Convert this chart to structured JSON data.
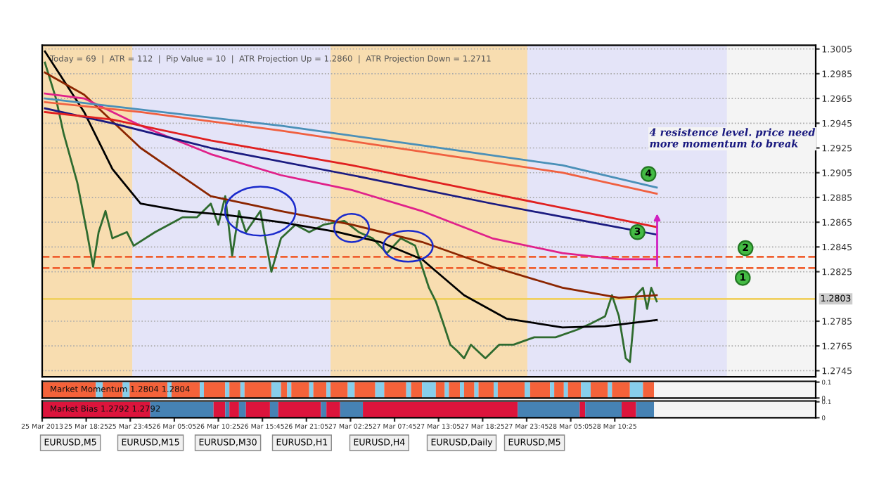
{
  "chart_data": [
    {
      "type": "line",
      "tick_labels": "y",
      "grid": "y",
      "xlim": [
        "2013-03-25T13:05",
        "2013-03-29T10:45"
      ],
      "ylim": [
        1.274,
        1.3008
      ],
      "yticks": [
        1.3005,
        1.2985,
        1.2965,
        1.2945,
        1.2925,
        1.2905,
        1.2885,
        1.2865,
        1.2845,
        1.2825,
        1.2785,
        1.2765,
        1.2745
      ],
      "series": [
        {
          "color": "#2f6b2f",
          "x": [
            "2013-03-25T13:25",
            "2013-03-25T14:45",
            "2013-03-25T15:40",
            "2013-03-25T17:20",
            "2013-03-25T18:30",
            "2013-03-25T19:15",
            "2013-03-25T19:55",
            "2013-03-25T20:45",
            "2013-03-25T21:35",
            "2013-03-25T23:20",
            "2013-03-26T00:10",
            "2013-03-26T02:45",
            "2013-03-26T04:25",
            "2013-03-26T06:05",
            "2013-03-26T07:50",
            "2013-03-26T09:30",
            "2013-03-26T10:25",
            "2013-03-26T11:15",
            "2013-03-26T12:05",
            "2013-03-26T12:55",
            "2013-03-26T13:45",
            "2013-03-26T15:30",
            "2013-03-26T16:50",
            "2013-03-26T18:00",
            "2013-03-26T19:45",
            "2013-03-26T21:25",
            "2013-03-26T23:10",
            "2013-03-27T01:40",
            "2013-03-27T03:25",
            "2013-03-27T05:05",
            "2013-03-27T06:50",
            "2013-03-27T08:30",
            "2013-03-27T10:15",
            "2013-03-27T11:05",
            "2013-03-27T11:55",
            "2013-03-27T12:45",
            "2013-03-27T13:40",
            "2013-03-27T14:30",
            "2013-03-27T15:20",
            "2013-03-27T16:10",
            "2013-03-27T17:00",
            "2013-03-27T18:45",
            "2013-03-27T20:25",
            "2013-03-27T22:10",
            "2013-03-28T00:40",
            "2013-03-28T03:15",
            "2013-03-28T05:50",
            "2013-03-28T07:30",
            "2013-03-28T09:15",
            "2013-03-28T10:05",
            "2013-03-28T10:55",
            "2013-03-28T11:45",
            "2013-03-28T12:15",
            "2013-03-28T13:00",
            "2013-03-28T13:50",
            "2013-03-28T14:20",
            "2013-03-28T14:50",
            "2013-03-28T15:30"
          ],
          "values": [
            1.2994,
            1.2965,
            1.2937,
            1.2897,
            1.2857,
            1.2829,
            1.2857,
            1.2874,
            1.2852,
            1.2857,
            1.2846,
            1.2857,
            1.2863,
            1.2869,
            1.2869,
            1.288,
            1.2863,
            1.2886,
            1.2838,
            1.2874,
            1.2857,
            1.2874,
            1.2825,
            1.2852,
            1.2863,
            1.2857,
            1.2863,
            1.2866,
            1.2857,
            1.2852,
            1.284,
            1.2852,
            1.2846,
            1.2829,
            1.2812,
            1.2801,
            1.2783,
            1.2766,
            1.2761,
            1.2755,
            1.2766,
            1.2755,
            1.2766,
            1.2766,
            1.2772,
            1.2772,
            1.2778,
            1.2783,
            1.2789,
            1.2806,
            1.2789,
            1.2755,
            1.2752,
            1.2806,
            1.2812,
            1.2795,
            1.2812,
            1.2801
          ]
        },
        {
          "color": "#000000",
          "x": [
            "2013-03-25T13:25",
            "2013-03-25T18:10",
            "2013-03-25T21:35",
            "2013-03-26T01:00",
            "2013-03-26T06:05",
            "2013-03-26T11:15",
            "2013-03-26T18:00",
            "2013-03-27T00:50",
            "2013-03-27T06:00",
            "2013-03-27T11:05",
            "2013-03-27T16:10",
            "2013-03-27T21:20",
            "2013-03-28T04:05",
            "2013-03-28T09:15",
            "2013-03-28T15:30"
          ],
          "values": [
            1.3003,
            1.2954,
            1.2908,
            1.288,
            1.2874,
            1.2871,
            1.2865,
            1.2857,
            1.2849,
            1.2835,
            1.2806,
            1.2787,
            1.278,
            1.2781,
            1.2786
          ]
        },
        {
          "color": "#8b2500",
          "x": [
            "2013-03-25T13:25",
            "2013-03-25T18:10",
            "2013-03-26T01:00",
            "2013-03-26T09:30",
            "2013-03-26T18:00",
            "2013-03-27T02:35",
            "2013-03-27T11:05",
            "2013-03-27T19:35",
            "2013-03-28T04:05",
            "2013-03-28T10:55",
            "2013-03-28T15:30"
          ],
          "values": [
            1.2986,
            1.2968,
            1.2925,
            1.2886,
            1.2874,
            1.2863,
            1.2849,
            1.2829,
            1.2812,
            1.2804,
            1.2806
          ]
        },
        {
          "color": "#e0218a",
          "x": [
            "2013-03-25T13:25",
            "2013-03-25T18:10",
            "2013-03-26T01:00",
            "2013-03-26T09:30",
            "2013-03-26T18:00",
            "2013-03-27T02:35",
            "2013-03-27T11:05",
            "2013-03-27T19:35",
            "2013-03-28T04:05",
            "2013-03-28T10:55",
            "2013-03-28T15:30"
          ],
          "values": [
            1.2969,
            1.2965,
            1.2943,
            1.292,
            1.2903,
            1.2891,
            1.2874,
            1.2852,
            1.284,
            1.2835,
            1.2835
          ]
        },
        {
          "color": "#1a1a80",
          "x": [
            "2013-03-25T13:25",
            "2013-03-25T21:35",
            "2013-03-26T09:30",
            "2013-03-27T02:35",
            "2013-03-27T19:35",
            "2013-03-28T07:30",
            "2013-03-28T15:30"
          ],
          "values": [
            1.2957,
            1.2945,
            1.2925,
            1.2903,
            1.288,
            1.2865,
            1.2855
          ]
        },
        {
          "color": "#e02020",
          "x": [
            "2013-03-25T13:25",
            "2013-03-25T21:35",
            "2013-03-26T09:30",
            "2013-03-27T02:35",
            "2013-03-27T19:35",
            "2013-03-28T07:30",
            "2013-03-28T15:30"
          ],
          "values": [
            1.2954,
            1.2948,
            1.2931,
            1.2911,
            1.2888,
            1.2872,
            1.2861
          ]
        },
        {
          "color": "#4a90b8",
          "x": [
            "2013-03-25T13:25",
            "2013-03-26T01:00",
            "2013-03-26T18:00",
            "2013-03-27T11:05",
            "2013-03-28T04:05",
            "2013-03-28T15:30"
          ],
          "values": [
            1.2965,
            1.2956,
            1.2943,
            1.2927,
            1.2911,
            1.2893
          ]
        },
        {
          "color": "#f06040",
          "x": [
            "2013-03-25T13:25",
            "2013-03-26T01:00",
            "2013-03-26T18:00",
            "2013-03-27T11:05",
            "2013-03-28T04:05",
            "2013-03-28T15:30"
          ],
          "values": [
            1.2962,
            1.2954,
            1.2939,
            1.2922,
            1.2905,
            1.2888
          ]
        }
      ],
      "ref_lines": [
        {
          "axis": "y",
          "value": 1.2837,
          "color": "#f06030",
          "line_style": "dashed"
        },
        {
          "axis": "y",
          "value": 1.2828,
          "color": "#f06030",
          "line_style": "dashed"
        },
        {
          "axis": "y",
          "value": 1.2803,
          "label": "1.2803",
          "color": "#f0d060",
          "line_style": "solid"
        }
      ],
      "bands": [
        {
          "axis": "x",
          "from": "2013-03-25T13:05",
          "to": "2013-03-26T00:00",
          "color": "#f8ddb0"
        },
        {
          "axis": "x",
          "from": "2013-03-26T00:00",
          "to": "2013-03-27T00:00",
          "color": "#e4e4f8"
        },
        {
          "axis": "x",
          "from": "2013-03-27T00:00",
          "to": "2013-03-27T23:50",
          "color": "#f8ddb0"
        },
        {
          "axis": "x",
          "from": "2013-03-27T23:50",
          "to": "2013-03-29T00:00",
          "color": "#e4e4f8"
        }
      ],
      "annotations": [
        "Today = 69  |  ATR = 112  |  Pip Value = 10  |  ATR Projection Up = 1.2860  |  ATR Projection Down = 1.2711",
        "4 resistence level. price need more momentum to break",
        {
          "text": "4",
          "x": "2013-03-28T14:30",
          "y": 1.2904
        },
        {
          "text": "3",
          "x": "2013-03-28T13:10",
          "y": 1.2857
        },
        {
          "text": "2",
          "x": "2013-03-29T02:15",
          "y": 1.2844
        },
        {
          "text": "1",
          "x": "2013-03-29T01:55",
          "y": 1.282
        }
      ]
    },
    {
      "type": "histogram",
      "tick_labels": "y",
      "xlim": [
        "2013-03-25T13:05",
        "2013-03-29T10:45"
      ],
      "ylim": [
        0,
        0.105
      ],
      "yticks": [
        0,
        0.1
      ],
      "bins": [
        "2013-03-25T13:05",
        "2013-03-25T19:35",
        "2013-03-25T20:25",
        "2013-03-25T22:50",
        "2013-03-25T23:40",
        "2013-03-26T04:15",
        "2013-03-26T04:45",
        "2013-03-26T08:10",
        "2013-03-26T08:40",
        "2013-03-26T11:15",
        "2013-03-26T11:45",
        "2013-03-26T13:05",
        "2013-03-26T13:35",
        "2013-03-26T16:50",
        "2013-03-26T18:00",
        "2013-03-26T18:45",
        "2013-03-26T19:15",
        "2013-03-26T21:25",
        "2013-03-26T21:55",
        "2013-03-26T23:30",
        "2013-03-27T00:00",
        "2013-03-27T02:05",
        "2013-03-27T02:55",
        "2013-03-27T05:25",
        "2013-03-27T06:30",
        "2013-03-27T09:10",
        "2013-03-27T09:45",
        "2013-03-27T11:05",
        "2013-03-27T12:45",
        "2013-03-27T13:50",
        "2013-03-27T14:20",
        "2013-03-27T15:40",
        "2013-03-27T16:10",
        "2013-03-27T17:25",
        "2013-03-27T17:55",
        "2013-03-27T19:45",
        "2013-03-27T20:15",
        "2013-03-27T23:30",
        "2013-03-28T00:10",
        "2013-03-28T02:35",
        "2013-03-28T03:05",
        "2013-03-28T04:15",
        "2013-03-28T04:45",
        "2013-03-28T06:20",
        "2013-03-28T07:30",
        "2013-03-28T09:35",
        "2013-03-28T10:05",
        "2013-03-28T12:15",
        "2013-03-28T13:50",
        "2013-03-28T15:10"
      ],
      "values": [
        0.1,
        0.1,
        0.1,
        0.1,
        0.1,
        0.1,
        0.1,
        0.1,
        0.1,
        0.1,
        0.1,
        0.1,
        0.1,
        0.1,
        0.1,
        0.1,
        0.1,
        0.1,
        0.1,
        0.1,
        0.1,
        0.1,
        0.1,
        0.1,
        0.1,
        0.1,
        0.1,
        0.1,
        0.1,
        0.1,
        0.1,
        0.1,
        0.1,
        0.1,
        0.1,
        0.1,
        0.1,
        0.1,
        0.1,
        0.1,
        0.1,
        0.1,
        0.1,
        0.1,
        0.1,
        0.1,
        0.1,
        0.1,
        0.1
      ],
      "colors": [
        "#f4623a",
        "#87ceeb",
        "#f4623a",
        "#87ceeb",
        "#f4623a",
        "#87ceeb",
        "#f4623a",
        "#87ceeb",
        "#f4623a",
        "#87ceeb",
        "#f4623a",
        "#87ceeb",
        "#f4623a",
        "#87ceeb",
        "#f4623a",
        "#87ceeb",
        "#f4623a",
        "#87ceeb",
        "#f4623a",
        "#87ceeb",
        "#f4623a",
        "#87ceeb",
        "#f4623a",
        "#87ceeb",
        "#f4623a",
        "#87ceeb",
        "#f4623a",
        "#87ceeb",
        "#f4623a",
        "#87ceeb",
        "#f4623a",
        "#87ceeb",
        "#f4623a",
        "#87ceeb",
        "#f4623a",
        "#87ceeb",
        "#f4623a",
        "#87ceeb",
        "#f4623a",
        "#87ceeb",
        "#f4623a",
        "#87ceeb",
        "#f4623a",
        "#87ceeb",
        "#f4623a",
        "#87ceeb",
        "#f4623a",
        "#87ceeb",
        "#f4623a"
      ],
      "annotations": [
        "Market Momentum 1.2804 1.2804"
      ]
    },
    {
      "type": "histogram",
      "xlim": [
        "2013-03-25T13:05",
        "2013-03-29T10:45"
      ],
      "ylim": [
        0,
        0.105
      ],
      "yticks": [
        0,
        0.1
      ],
      "xticks": [
        {
          "value": "2013-03-25T13:05",
          "label": "25 Mar 2013"
        },
        {
          "value": "2013-03-25T18:25",
          "label": "25 Mar 18:25"
        },
        {
          "value": "2013-03-25T23:45",
          "label": "25 Mar 23:45"
        },
        {
          "value": "2013-03-26T05:05",
          "label": "26 Mar 05:05"
        },
        {
          "value": "2013-03-26T10:25",
          "label": "26 Mar 10:25"
        },
        {
          "value": "2013-03-26T15:45",
          "label": "26 Mar 15:45"
        },
        {
          "value": "2013-03-26T21:05",
          "label": "26 Mar 21:05"
        },
        {
          "value": "2013-03-27T02:25",
          "label": "27 Mar 02:25"
        },
        {
          "value": "2013-03-27T07:45",
          "label": "27 Mar 07:45"
        },
        {
          "value": "2013-03-27T13:05",
          "label": "27 Mar 13:05"
        },
        {
          "value": "2013-03-27T18:25",
          "label": "27 Mar 18:25"
        },
        {
          "value": "2013-03-27T23:45",
          "label": "27 Mar 23:45"
        },
        {
          "value": "2013-03-28T05:05",
          "label": "28 Mar 05:05"
        },
        {
          "value": "2013-03-28T10:25",
          "label": "28 Mar 10:25"
        }
      ],
      "bins": [
        "2013-03-25T13:05",
        "2013-03-26T02:10",
        "2013-03-26T09:50",
        "2013-03-26T11:15",
        "2013-03-26T11:45",
        "2013-03-26T12:55",
        "2013-03-26T13:45",
        "2013-03-26T16:40",
        "2013-03-26T17:40",
        "2013-03-26T22:50",
        "2013-03-26T23:30",
        "2013-03-27T01:10",
        "2013-03-27T03:55",
        "2013-03-27T22:40",
        "2013-03-28T06:10",
        "2013-03-28T06:50",
        "2013-03-28T11:15",
        "2013-03-28T13:00",
        "2013-03-28T15:10"
      ],
      "values": [
        0.1,
        0.1,
        0.1,
        0.1,
        0.1,
        0.1,
        0.1,
        0.1,
        0.1,
        0.1,
        0.1,
        0.1,
        0.1,
        0.1,
        0.1,
        0.1,
        0.1,
        0.1
      ],
      "colors": [
        "#dc143c",
        "#4682b4",
        "#dc143c",
        "#4682b4",
        "#dc143c",
        "#4682b4",
        "#dc143c",
        "#4682b4",
        "#dc143c",
        "#4682b4",
        "#dc143c",
        "#4682b4",
        "#dc143c",
        "#4682b4",
        "#dc143c",
        "#4682b4",
        "#dc143c",
        "#4682b4"
      ],
      "annotations": [
        "Market Bias 1.2792 1.2792",
        "EURUSD,M5",
        "EURUSD,M15",
        "EURUSD,M30",
        "EURUSD,H1",
        "EURUSD,H4",
        "EURUSD,Daily",
        "EURUSD,M5"
      ]
    }
  ]
}
